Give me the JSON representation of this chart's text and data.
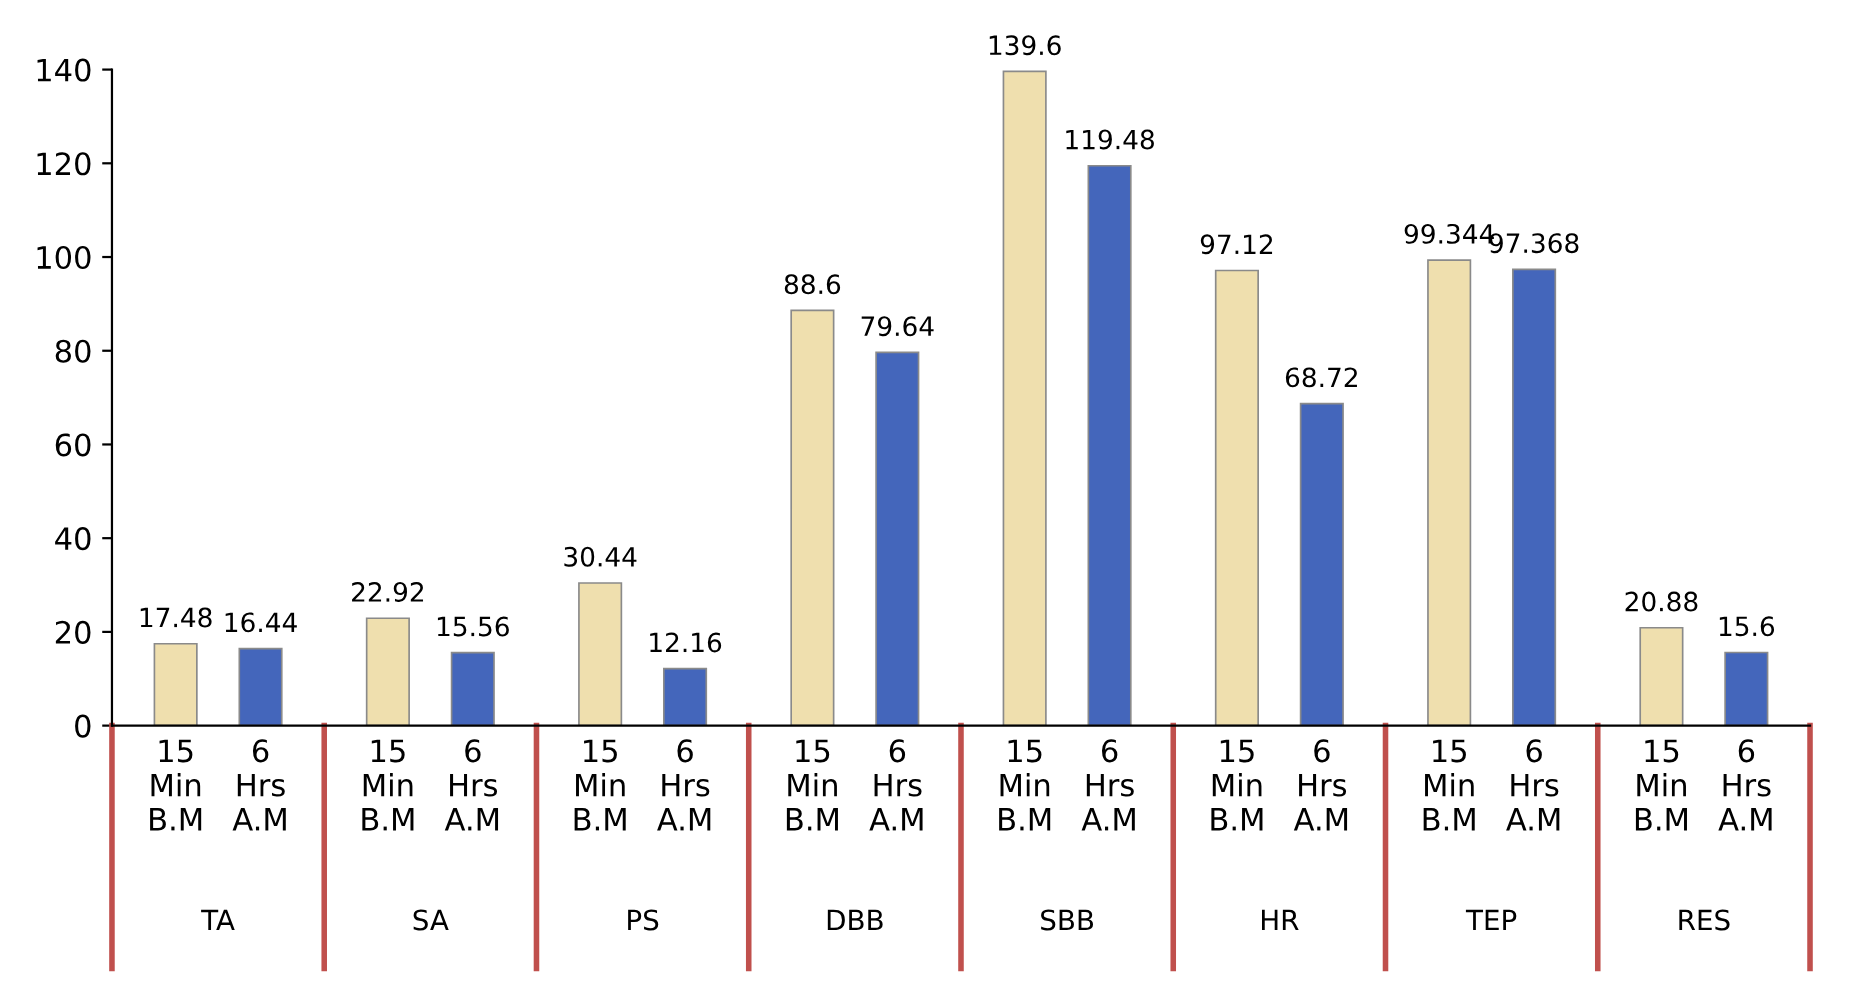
{
  "chart_data": {
    "type": "bar",
    "categories": [
      "TA",
      "SA",
      "PS",
      "DBB",
      "SBB",
      "HR",
      "TEP",
      "RES"
    ],
    "series": [
      {
        "name": "15 Min B.M",
        "color": "#efdfae",
        "values": [
          17.48,
          22.92,
          30.44,
          88.6,
          139.6,
          97.12,
          99.344,
          20.88
        ]
      },
      {
        "name": "6 Hrs A.M",
        "color": "#4466bb",
        "values": [
          16.44,
          15.56,
          12.16,
          79.64,
          119.48,
          68.72,
          97.368,
          15.6
        ]
      }
    ],
    "ylim": [
      0,
      140
    ],
    "yticks": [
      0,
      20,
      40,
      60,
      80,
      100,
      120,
      140
    ],
    "data_labels": true,
    "grid": false,
    "legend": false
  }
}
